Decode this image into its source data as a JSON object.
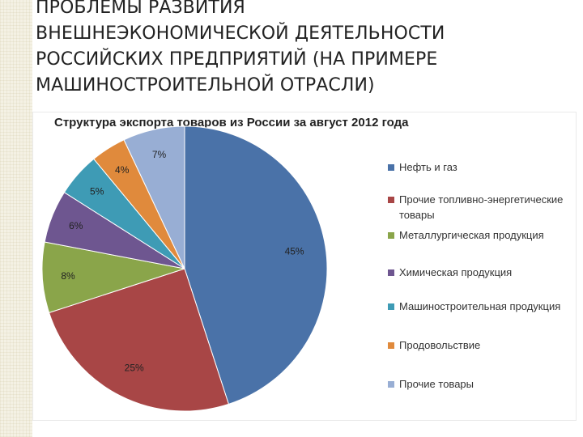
{
  "slide": {
    "title_lines": [
      "ПРОБЛЕМЫ РАЗВИТИЯ",
      "ВНЕШНЕЭКОНОМИЧЕСКОЙ ДЕЯТЕЛЬНОСТИ",
      "РОССИЙСКИХ ПРЕДПРИЯТИЙ (НА ПРИМЕРЕ",
      "МАШИНОСТРОИТЕЛЬНОЙ ОТРАСЛИ)"
    ]
  },
  "chart_data": {
    "type": "pie",
    "title": "Структура экспорта товаров из России за август 2012 года",
    "legend_position": "right",
    "slices": [
      {
        "label": "Нефть  и газ",
        "value": 45,
        "data_label": "45%",
        "color": "#4a72a8"
      },
      {
        "label": "Прочие топливно-энергетические товары",
        "value": 25,
        "data_label": "25%",
        "color": "#a84646"
      },
      {
        "label": "Металлургическая продукция",
        "value": 8,
        "data_label": "8%",
        "color": "#8aa54a"
      },
      {
        "label": "Химическая продукция",
        "value": 6,
        "data_label": "6%",
        "color": "#6e5690"
      },
      {
        "label": "Машиностроительная продукция",
        "value": 5,
        "data_label": "5%",
        "color": "#3e9bb5"
      },
      {
        "label": "Продовольствие",
        "value": 4,
        "data_label": "4%",
        "color": "#e08a3c"
      },
      {
        "label": "Прочие товары",
        "value": 7,
        "data_label": "7%",
        "color": "#98aed4"
      }
    ]
  }
}
